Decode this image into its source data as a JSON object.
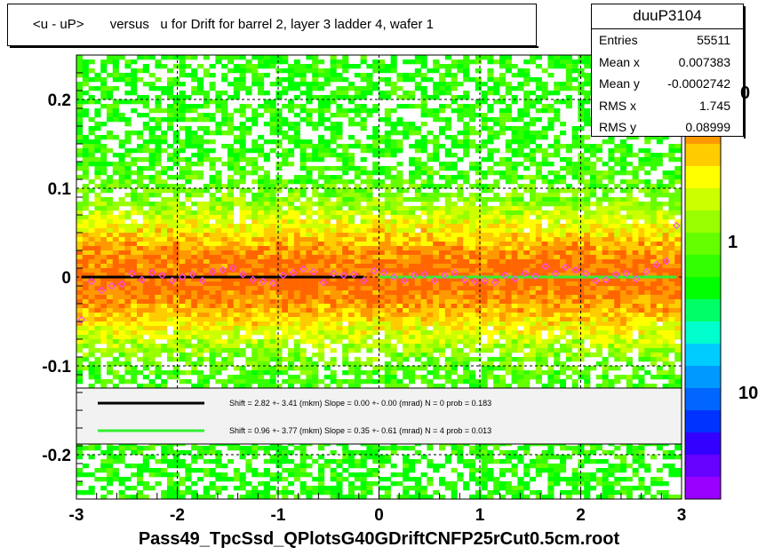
{
  "title": "<u - uP>       versus   u for Drift for barrel 2, layer 3 ladder 4, wafer 1",
  "stats": {
    "name": "duuP3104",
    "rows": [
      {
        "label": "Entries",
        "value": "55511"
      },
      {
        "label": "Mean x",
        "value": "0.007383"
      },
      {
        "label": "Mean y",
        "value": "-0.0002742"
      },
      {
        "label": "RMS x",
        "value": "1.745"
      },
      {
        "label": "RMS y",
        "value": "0.08999"
      }
    ]
  },
  "x_title": "Pass49_TpcSsd_QPlotsG40GDriftCNFP25rCut0.5cm.root",
  "colors": {
    "fit1": "#000000",
    "fit2": "#33ee33",
    "marker": "#ff44ff"
  },
  "legend": [
    {
      "text": "Shift =     2.82 +- 3.41 (mkm) Slope =     0.00 +- 0.00 (mrad)  N = 0 prob = 0.183",
      "color": "#000000"
    },
    {
      "text": "Shift =     0.96 +- 3.77 (mkm) Slope =     0.35 +- 0.61 (mrad)  N = 4 prob = 0.013",
      "color": "#33ee33"
    }
  ],
  "z_axis": {
    "labels": [
      "0",
      "1",
      "10"
    ]
  },
  "chart_data": {
    "type": "heatmap",
    "xlim": [
      -3,
      3
    ],
    "ylim": [
      -0.25,
      0.25
    ],
    "x_ticks": [
      {
        "value": -3,
        "label": "-3"
      },
      {
        "value": -2,
        "label": "-2"
      },
      {
        "value": -1,
        "label": "-1"
      },
      {
        "value": 0,
        "label": "0"
      },
      {
        "value": 1,
        "label": "1"
      },
      {
        "value": 2,
        "label": "2"
      },
      {
        "value": 3,
        "label": "3"
      }
    ],
    "y_ticks": [
      {
        "value": 0.2,
        "label": "0.2"
      },
      {
        "value": 0.1,
        "label": "0.1"
      },
      {
        "value": 0,
        "label": "0"
      },
      {
        "value": -0.1,
        "label": "-0.1"
      },
      {
        "value": -0.2,
        "label": "-0.2"
      }
    ],
    "grid": true,
    "fit_lines": [
      {
        "x": [
          -2.95,
          -0.15
        ],
        "y": [
          0.0,
          0.0
        ],
        "color": "#000000"
      },
      {
        "x": [
          0.0,
          2.95
        ],
        "y": [
          0.0,
          0.0
        ],
        "color": "#33ee33"
      }
    ],
    "profile_points": [
      [
        -2.95,
        -0.048
      ],
      [
        -2.85,
        -0.005
      ],
      [
        -2.75,
        -0.015
      ],
      [
        -2.65,
        -0.01
      ],
      [
        -2.55,
        -0.008
      ],
      [
        -2.45,
        0.004
      ],
      [
        -2.35,
        -0.003
      ],
      [
        -2.25,
        0.005
      ],
      [
        -2.15,
        0.002
      ],
      [
        -2.05,
        -0.004
      ],
      [
        -1.95,
        0.0
      ],
      [
        -1.85,
        0.003
      ],
      [
        -1.75,
        -0.004
      ],
      [
        -1.65,
        0.006
      ],
      [
        -1.55,
        0.008
      ],
      [
        -1.45,
        0.01
      ],
      [
        -1.35,
        0.003
      ],
      [
        -1.25,
        -0.003
      ],
      [
        -1.15,
        -0.005
      ],
      [
        -1.05,
        -0.007
      ],
      [
        -0.95,
        0.002
      ],
      [
        -0.85,
        0.005
      ],
      [
        -0.75,
        0.009
      ],
      [
        -0.65,
        0.006
      ],
      [
        -0.55,
        -0.006
      ],
      [
        -0.45,
        0.004
      ],
      [
        -0.35,
        0.002
      ],
      [
        -0.25,
        0.003
      ],
      [
        -0.15,
        -0.004
      ],
      [
        -0.05,
        0.007
      ],
      [
        0.05,
        0.005
      ],
      [
        0.15,
        0.0
      ],
      [
        0.25,
        -0.004
      ],
      [
        0.35,
        0.002
      ],
      [
        0.45,
        0.003
      ],
      [
        0.55,
        -0.004
      ],
      [
        0.65,
        0.002
      ],
      [
        0.75,
        0.005
      ],
      [
        0.85,
        -0.003
      ],
      [
        0.95,
        -0.005
      ],
      [
        1.05,
        -0.004
      ],
      [
        1.15,
        -0.006
      ],
      [
        1.25,
        0.002
      ],
      [
        1.35,
        -0.002
      ],
      [
        1.45,
        0.004
      ],
      [
        1.55,
        0.001
      ],
      [
        1.65,
        0.012
      ],
      [
        1.75,
        0.004
      ],
      [
        1.85,
        0.011
      ],
      [
        1.95,
        0.008
      ],
      [
        2.05,
        0.004
      ],
      [
        2.15,
        -0.004
      ],
      [
        2.25,
        -0.003
      ],
      [
        2.35,
        0.003
      ],
      [
        2.45,
        0.004
      ],
      [
        2.55,
        -0.002
      ],
      [
        2.65,
        0.006
      ],
      [
        2.75,
        0.014
      ],
      [
        2.85,
        0.018
      ],
      [
        2.95,
        0.058
      ]
    ]
  }
}
